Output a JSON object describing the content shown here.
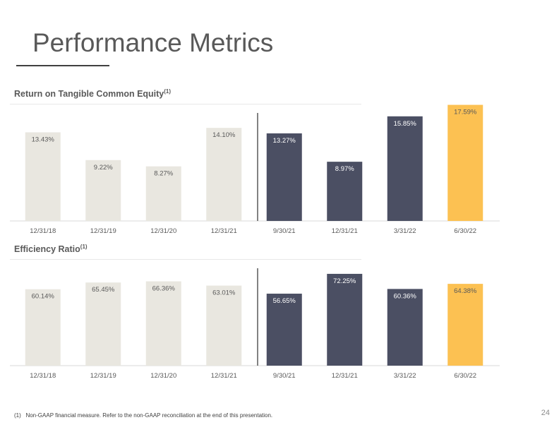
{
  "page": {
    "title": "Performance Metrics",
    "footnote_marker": "(1)",
    "footnote": "Non-GAAP financial measure.  Refer to the non-GAAP reconciliation at the end of this presentation.",
    "page_number": "24"
  },
  "colors": {
    "annual": "#e9e7e0",
    "quarterly": "#4b4f63",
    "latest": "#fcc152",
    "divider": "#595959",
    "axis": "#d9d9d9",
    "text": "#595959",
    "label_on_dark": "#ffffff"
  },
  "chart_data": [
    {
      "type": "bar",
      "title": "Return on Tangible Common Equity",
      "title_sup": "(1)",
      "categories": [
        "12/31/18",
        "12/31/19",
        "12/31/20",
        "12/31/21",
        "9/30/21",
        "12/31/21",
        "3/31/22",
        "6/30/22"
      ],
      "values": [
        13.43,
        9.22,
        8.27,
        14.1,
        13.27,
        8.97,
        15.85,
        17.59
      ],
      "labels": [
        "13.43%",
        "9.22%",
        "8.27%",
        "14.10%",
        "13.27%",
        "8.97%",
        "15.85%",
        "17.59%"
      ],
      "groups": [
        "annual",
        "annual",
        "annual",
        "annual",
        "quarterly",
        "quarterly",
        "quarterly",
        "latest"
      ],
      "ylim": [
        0,
        20
      ]
    },
    {
      "type": "bar",
      "title": "Efficiency Ratio",
      "title_sup": "(1)",
      "categories": [
        "12/31/18",
        "12/31/19",
        "12/31/20",
        "12/31/21",
        "9/30/21",
        "12/31/21",
        "3/31/22",
        "6/30/22"
      ],
      "values": [
        60.14,
        65.45,
        66.36,
        63.01,
        56.65,
        72.25,
        60.36,
        64.38
      ],
      "labels": [
        "60.14%",
        "65.45%",
        "66.36%",
        "63.01%",
        "56.65%",
        "72.25%",
        "60.36%",
        "64.38%"
      ],
      "groups": [
        "annual",
        "annual",
        "annual",
        "annual",
        "quarterly",
        "quarterly",
        "quarterly",
        "latest"
      ],
      "ylim": [
        0,
        90
      ]
    }
  ]
}
